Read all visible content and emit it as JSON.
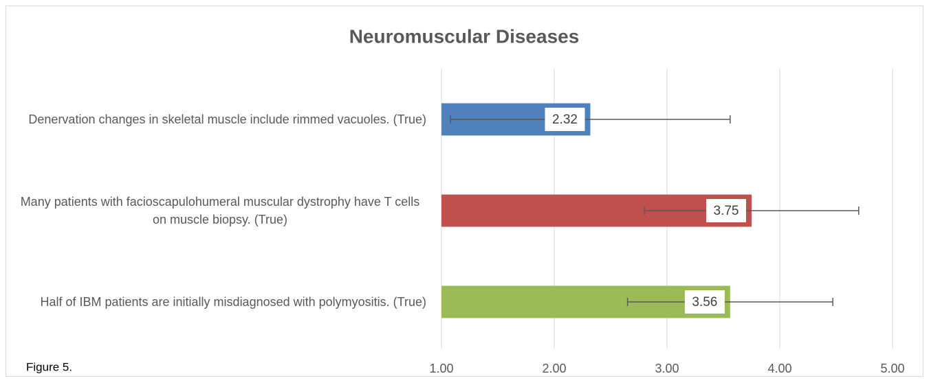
{
  "chart_data": {
    "type": "bar",
    "orientation": "horizontal",
    "title": "Neuromuscular Diseases",
    "annotation": "Figure 5.",
    "categories": [
      "Denervation changes in skeletal muscle include rimmed vacuoles. (True)",
      "Many patients with facioscapulohumeral muscular dystrophy have T cells on muscle biopsy. (True)",
      "Half of IBM patients are initially misdiagnosed with polymyositis. (True)"
    ],
    "values": [
      2.32,
      3.75,
      3.56
    ],
    "errors": [
      1.24,
      0.95,
      0.91
    ],
    "colors": [
      "#4f81bd",
      "#c0504d",
      "#9bbb59"
    ],
    "xlim": [
      1,
      5
    ],
    "xticks": [
      {
        "value": 1,
        "label": "1.00"
      },
      {
        "value": 2,
        "label": "2.00"
      },
      {
        "value": 3,
        "label": "3.00"
      },
      {
        "value": 4,
        "label": "4.00"
      },
      {
        "value": 5,
        "label": "5.00"
      }
    ],
    "grid": true
  }
}
